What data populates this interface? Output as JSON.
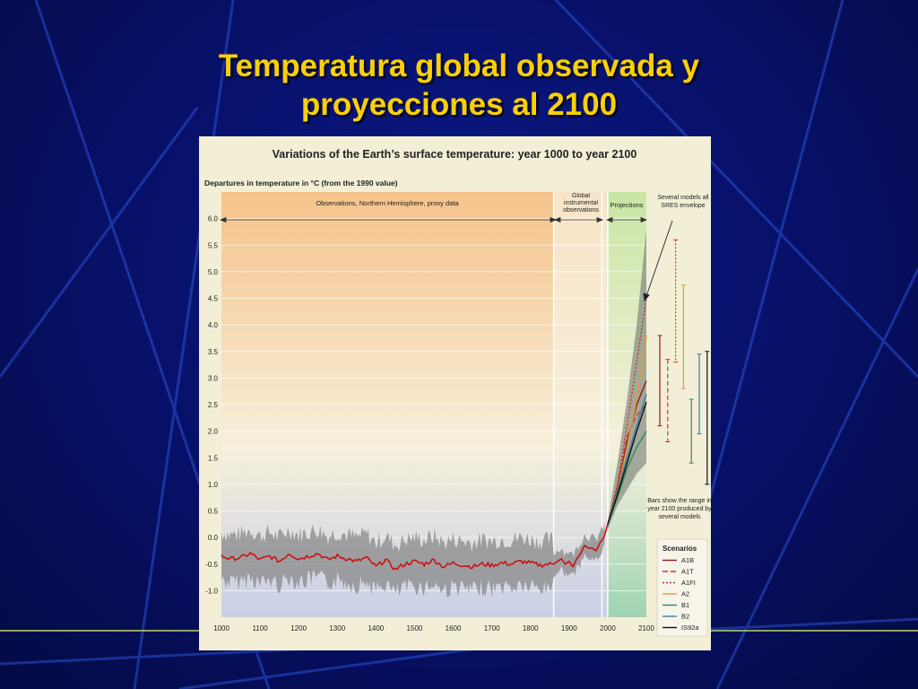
{
  "slide": {
    "title_line1": "Temperatura global observada y",
    "title_line2": "proyecciones al 2100"
  },
  "colors": {
    "background": "#071066",
    "title": "#ffd000",
    "panel": "#f3efd6",
    "proxy_region": "#f6c28a",
    "instrumental_region": "#f8e4c8",
    "projection_region": "#c9e6a5",
    "observed_line": "#cc1111",
    "uncertainty": "#888888"
  },
  "chart_data": {
    "type": "line",
    "title": "Variations of the Earth’s surface temperature: year 1000 to year 2100",
    "ylabel": "Departures in temperature in °C (from the 1990 value)",
    "xlabel": "",
    "xlim": [
      1000,
      2100
    ],
    "ylim": [
      -1.5,
      6.5
    ],
    "x_ticks": [
      1000,
      1100,
      1200,
      1300,
      1400,
      1500,
      1600,
      1700,
      1800,
      1900,
      2000,
      2100
    ],
    "y_ticks": [
      "6.0",
      "5.5",
      "5.0",
      "4.5",
      "4.0",
      "3.5",
      "3.0",
      "2.5",
      "2.0",
      "1.5",
      "1.0",
      "0.5",
      "0.0",
      "-0.5",
      "-1.0"
    ],
    "regions": [
      {
        "label": "Observations, Northern Hemisphere, proxy data",
        "from": 1000,
        "to": 1860
      },
      {
        "label": "Global instrumental observations",
        "from": 1860,
        "to": 2000
      },
      {
        "label": "Projections",
        "from": 2000,
        "to": 2100
      }
    ],
    "observed": {
      "x": [
        1000,
        1025,
        1050,
        1075,
        1100,
        1125,
        1150,
        1175,
        1200,
        1225,
        1250,
        1275,
        1300,
        1325,
        1350,
        1375,
        1400,
        1425,
        1450,
        1475,
        1500,
        1525,
        1550,
        1575,
        1600,
        1625,
        1650,
        1675,
        1700,
        1725,
        1750,
        1775,
        1800,
        1825,
        1850,
        1860,
        1870,
        1880,
        1890,
        1900,
        1910,
        1920,
        1930,
        1940,
        1950,
        1960,
        1970,
        1980,
        1990,
        2000
      ],
      "y": [
        -0.35,
        -0.4,
        -0.38,
        -0.3,
        -0.42,
        -0.35,
        -0.45,
        -0.3,
        -0.4,
        -0.35,
        -0.3,
        -0.42,
        -0.35,
        -0.4,
        -0.45,
        -0.38,
        -0.55,
        -0.42,
        -0.6,
        -0.5,
        -0.45,
        -0.5,
        -0.42,
        -0.55,
        -0.48,
        -0.52,
        -0.55,
        -0.5,
        -0.52,
        -0.48,
        -0.5,
        -0.45,
        -0.48,
        -0.52,
        -0.5,
        -0.5,
        -0.45,
        -0.4,
        -0.5,
        -0.45,
        -0.55,
        -0.4,
        -0.3,
        -0.15,
        -0.2,
        -0.2,
        -0.25,
        -0.1,
        0.0,
        0.25
      ]
    },
    "proxy_band": {
      "lower_offset": -0.45,
      "upper_offset": 0.45
    },
    "envelope": {
      "x": [
        2000,
        2025,
        2050,
        2075,
        2100
      ],
      "upper": [
        0.3,
        1.4,
        2.6,
        4.0,
        5.8
      ],
      "lower": [
        0.15,
        0.6,
        0.9,
        1.2,
        1.4
      ]
    },
    "series": [
      {
        "name": "A1B",
        "color": "#8b1a1a",
        "dash": "",
        "x": [
          2000,
          2025,
          2050,
          2075,
          2100
        ],
        "y": [
          0.25,
          0.9,
          1.8,
          2.5,
          2.95
        ]
      },
      {
        "name": "A1T",
        "color": "#c43b3b",
        "dash": "6 3",
        "x": [
          2000,
          2025,
          2050,
          2075,
          2100
        ],
        "y": [
          0.25,
          0.95,
          1.9,
          2.3,
          2.5
        ]
      },
      {
        "name": "A1FI",
        "color": "#cc3333",
        "dash": "2 2",
        "x": [
          2000,
          2025,
          2050,
          2075,
          2100
        ],
        "y": [
          0.25,
          1.0,
          2.1,
          3.3,
          4.5
        ]
      },
      {
        "name": "A2",
        "color": "#e09a3a",
        "dash": "",
        "x": [
          2000,
          2025,
          2050,
          2075,
          2100
        ],
        "y": [
          0.25,
          0.85,
          1.7,
          2.6,
          3.8
        ]
      },
      {
        "name": "B1",
        "color": "#2e8b57",
        "dash": "",
        "x": [
          2000,
          2025,
          2050,
          2075,
          2100
        ],
        "y": [
          0.25,
          0.75,
          1.3,
          1.7,
          2.0
        ]
      },
      {
        "name": "B2",
        "color": "#3a7ea0",
        "dash": "",
        "x": [
          2000,
          2025,
          2050,
          2075,
          2100
        ],
        "y": [
          0.25,
          0.85,
          1.5,
          2.1,
          2.7
        ]
      },
      {
        "name": "IS92a",
        "color": "#111111",
        "dash": "",
        "x": [
          2000,
          2025,
          2050,
          2075,
          2100
        ],
        "y": [
          0.25,
          0.8,
          1.4,
          2.0,
          2.55
        ]
      }
    ],
    "range_bars": [
      {
        "name": "A1B",
        "color": "#8b1a1a",
        "dash": "",
        "low": 2.1,
        "high": 3.8
      },
      {
        "name": "A1T",
        "color": "#c43b3b",
        "dash": "5 3",
        "low": 1.8,
        "high": 3.35
      },
      {
        "name": "A1FI",
        "color": "#cc3333",
        "dash": "2 2",
        "low": 3.3,
        "high": 5.6
      },
      {
        "name": "A2",
        "color": "#e09a3a",
        "dash": "",
        "low": 2.8,
        "high": 4.75
      },
      {
        "name": "B1",
        "color": "#2e8b57",
        "dash": "",
        "low": 1.4,
        "high": 2.6
      },
      {
        "name": "B2",
        "color": "#3a7ea0",
        "dash": "",
        "low": 1.95,
        "high": 3.45
      },
      {
        "name": "IS92a",
        "color": "#111111",
        "dash": "",
        "low": 1.0,
        "high": 3.5
      }
    ],
    "annotations": {
      "envelope_note": "Several models all SRES envelope",
      "bars_note": "Bars show the range in year 2100 produced by several models"
    },
    "legend": {
      "title": "Scenarios",
      "placement": "bottom-right"
    }
  }
}
